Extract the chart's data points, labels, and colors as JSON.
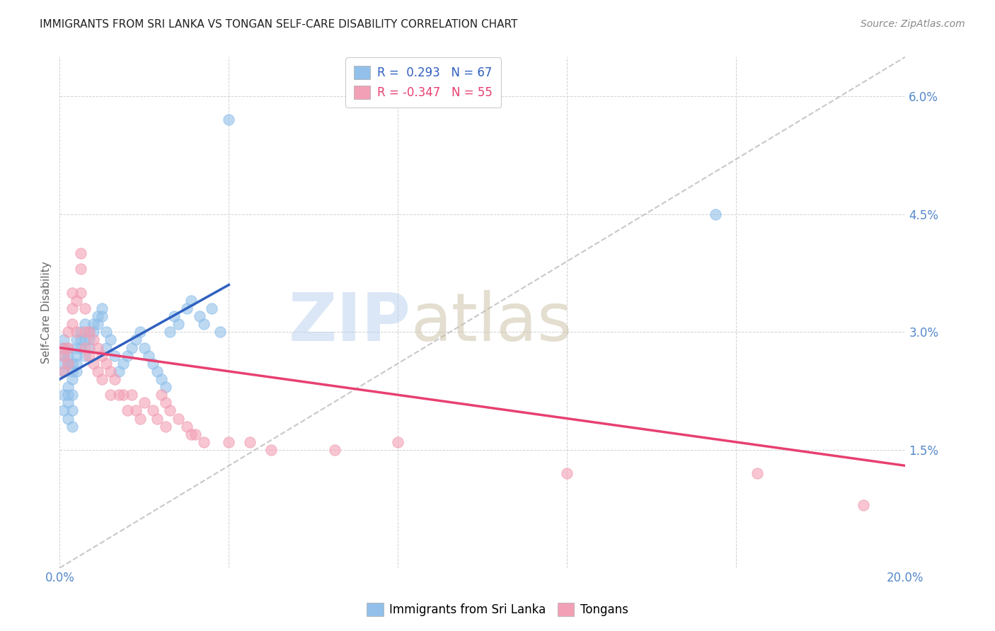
{
  "title": "IMMIGRANTS FROM SRI LANKA VS TONGAN SELF-CARE DISABILITY CORRELATION CHART",
  "source": "Source: ZipAtlas.com",
  "ylabel_label": "Self-Care Disability",
  "x_min": 0.0,
  "x_max": 0.2,
  "y_min": 0.0,
  "y_max": 0.065,
  "legend_label1": "Immigrants from Sri Lanka",
  "legend_label2": "Tongans",
  "R1": 0.293,
  "N1": 67,
  "R2": -0.347,
  "N2": 55,
  "color_blue": "#92C0EA",
  "color_pink": "#F2A0B5",
  "color_blue_line": "#3060C0",
  "color_pink_line": "#E84070",
  "color_dashed": "#BBBBBB",
  "sri_lanka_x": [
    0.001,
    0.001,
    0.001,
    0.001,
    0.001,
    0.001,
    0.001,
    0.002,
    0.002,
    0.002,
    0.002,
    0.002,
    0.002,
    0.002,
    0.003,
    0.003,
    0.003,
    0.003,
    0.003,
    0.003,
    0.004,
    0.004,
    0.004,
    0.004,
    0.004,
    0.005,
    0.005,
    0.005,
    0.006,
    0.006,
    0.006,
    0.007,
    0.007,
    0.007,
    0.008,
    0.008,
    0.009,
    0.009,
    0.01,
    0.01,
    0.011,
    0.011,
    0.012,
    0.013,
    0.014,
    0.015,
    0.016,
    0.017,
    0.018,
    0.019,
    0.02,
    0.021,
    0.022,
    0.023,
    0.024,
    0.025,
    0.026,
    0.027,
    0.028,
    0.03,
    0.031,
    0.033,
    0.034,
    0.036,
    0.038,
    0.04,
    0.155
  ],
  "sri_lanka_y": [
    0.025,
    0.026,
    0.027,
    0.028,
    0.029,
    0.02,
    0.022,
    0.026,
    0.027,
    0.028,
    0.022,
    0.023,
    0.021,
    0.019,
    0.025,
    0.026,
    0.024,
    0.022,
    0.02,
    0.018,
    0.028,
    0.029,
    0.027,
    0.026,
    0.025,
    0.03,
    0.029,
    0.028,
    0.031,
    0.029,
    0.027,
    0.03,
    0.029,
    0.028,
    0.031,
    0.03,
    0.032,
    0.031,
    0.033,
    0.032,
    0.03,
    0.028,
    0.029,
    0.027,
    0.025,
    0.026,
    0.027,
    0.028,
    0.029,
    0.03,
    0.028,
    0.027,
    0.026,
    0.025,
    0.024,
    0.023,
    0.03,
    0.032,
    0.031,
    0.033,
    0.034,
    0.032,
    0.031,
    0.033,
    0.03,
    0.057,
    0.045
  ],
  "tongan_x": [
    0.001,
    0.001,
    0.001,
    0.002,
    0.002,
    0.002,
    0.003,
    0.003,
    0.003,
    0.004,
    0.004,
    0.005,
    0.005,
    0.005,
    0.006,
    0.006,
    0.006,
    0.007,
    0.007,
    0.008,
    0.008,
    0.009,
    0.009,
    0.01,
    0.01,
    0.011,
    0.012,
    0.012,
    0.013,
    0.014,
    0.015,
    0.016,
    0.017,
    0.018,
    0.019,
    0.02,
    0.022,
    0.023,
    0.024,
    0.025,
    0.025,
    0.026,
    0.028,
    0.03,
    0.031,
    0.032,
    0.034,
    0.04,
    0.045,
    0.05,
    0.065,
    0.08,
    0.12,
    0.165,
    0.19
  ],
  "tongan_y": [
    0.028,
    0.025,
    0.027,
    0.03,
    0.028,
    0.026,
    0.035,
    0.033,
    0.031,
    0.034,
    0.03,
    0.04,
    0.038,
    0.035,
    0.033,
    0.03,
    0.028,
    0.03,
    0.027,
    0.029,
    0.026,
    0.028,
    0.025,
    0.027,
    0.024,
    0.026,
    0.025,
    0.022,
    0.024,
    0.022,
    0.022,
    0.02,
    0.022,
    0.02,
    0.019,
    0.021,
    0.02,
    0.019,
    0.022,
    0.021,
    0.018,
    0.02,
    0.019,
    0.018,
    0.017,
    0.017,
    0.016,
    0.016,
    0.016,
    0.015,
    0.015,
    0.016,
    0.012,
    0.012,
    0.008
  ],
  "blue_line_x": [
    0.0,
    0.04
  ],
  "blue_line_y": [
    0.024,
    0.036
  ],
  "pink_line_x": [
    0.0,
    0.2
  ],
  "pink_line_y": [
    0.028,
    0.013
  ],
  "dash_line_x": [
    0.0,
    0.2
  ],
  "dash_line_y": [
    0.0,
    0.065
  ]
}
